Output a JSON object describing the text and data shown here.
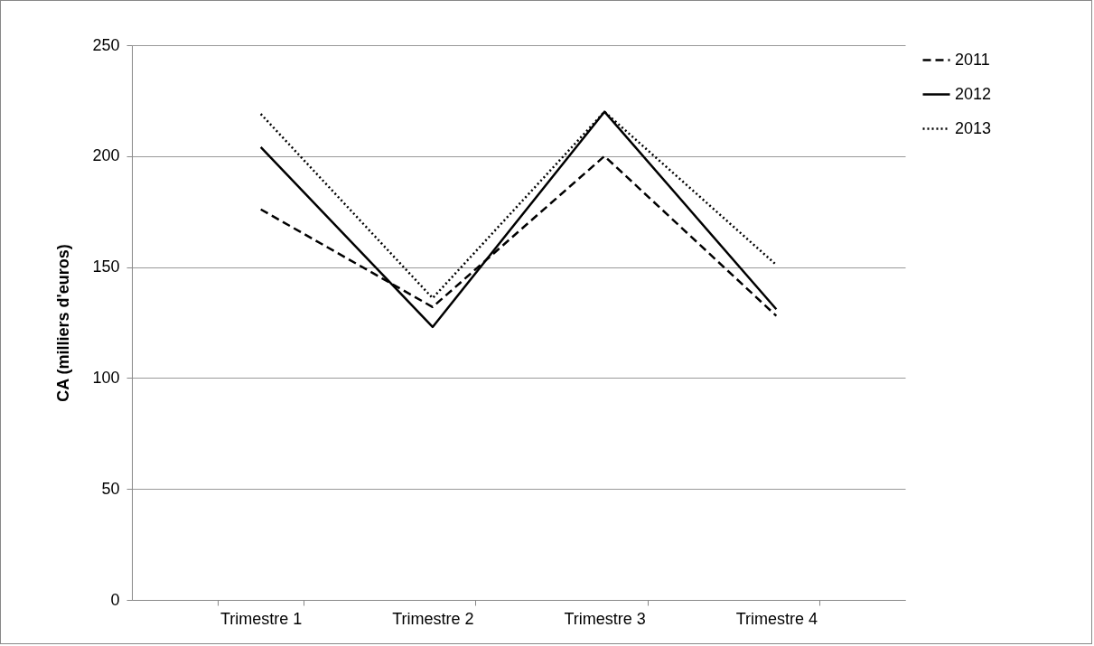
{
  "chart_data": {
    "type": "line",
    "ylabel": "CA (milliers d'euros)",
    "categories": [
      "Trimestre 1",
      "Trimestre 2",
      "Trimestre 3",
      "Trimestre 4"
    ],
    "series": [
      {
        "name": "2011",
        "color": "#000000",
        "line_style": "dashed",
        "values": [
          176,
          132,
          200,
          128
        ]
      },
      {
        "name": "2012",
        "color": "#000000",
        "line_style": "solid",
        "values": [
          204,
          123,
          220,
          131
        ]
      },
      {
        "name": "2013",
        "color": "#000000",
        "line_style": "dotted",
        "values": [
          219,
          136,
          220,
          151
        ]
      }
    ],
    "ylim": [
      0,
      250
    ],
    "yticks": [
      0,
      50,
      100,
      150,
      200,
      250
    ],
    "grid": "y",
    "legend": "right",
    "marker": "none"
  }
}
